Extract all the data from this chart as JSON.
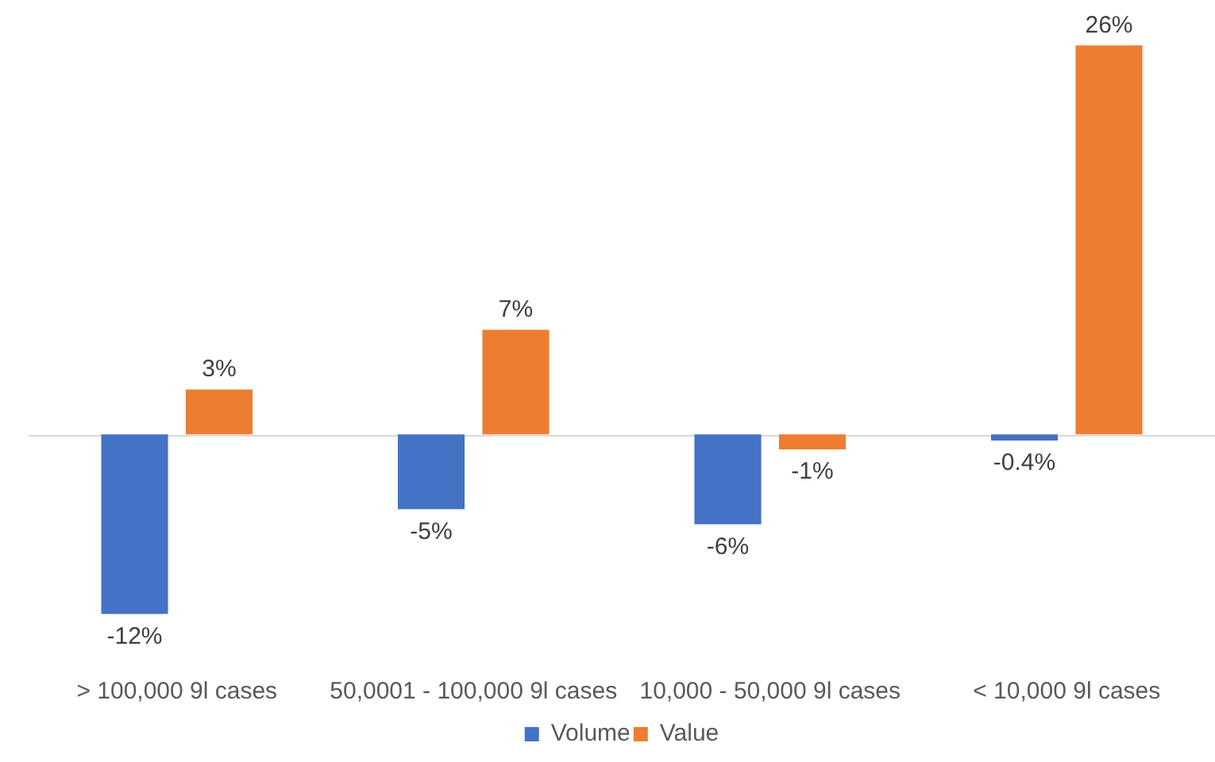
{
  "chart_data": {
    "type": "bar",
    "categories": [
      "> 100,000 9l cases",
      "50,0001 - 100,000 9l cases",
      "10,000 - 50,000 9l cases",
      "< 10,000 9l cases"
    ],
    "series": [
      {
        "name": "Volume",
        "color": "#4472c4",
        "values": [
          -12,
          -5,
          -6,
          -0.4
        ],
        "value_labels": [
          "-12%",
          "-5%",
          "-6%",
          "-0.4%"
        ]
      },
      {
        "name": "Value",
        "color": "#ed7d31",
        "values": [
          3,
          7,
          -1,
          26
        ],
        "value_labels": [
          "3%",
          "7%",
          "-1%",
          "26%"
        ]
      }
    ],
    "legend": "bottom",
    "tick_labels": "x",
    "grid": false
  }
}
